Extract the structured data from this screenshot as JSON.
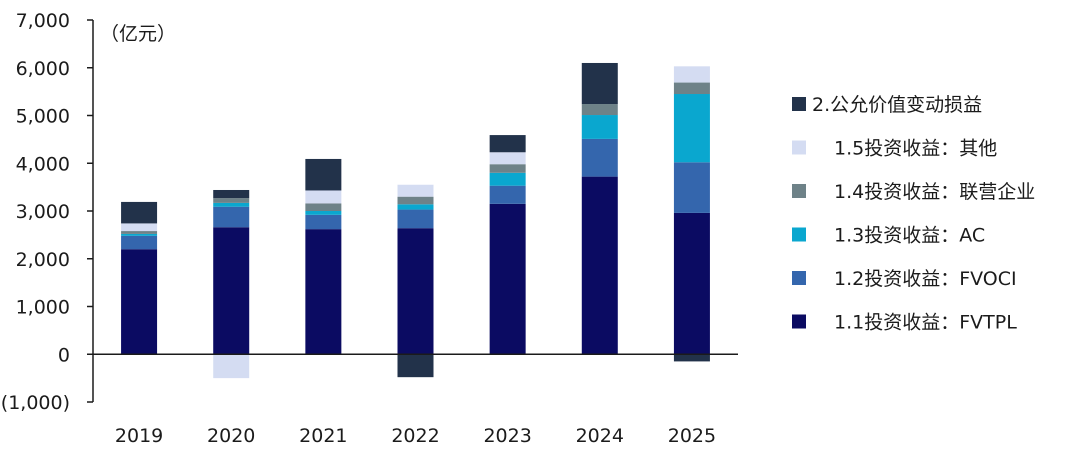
{
  "chart_data": {
    "type": "bar",
    "stacked": true,
    "unit_label": "（亿元）",
    "categories": [
      "2019",
      "2020",
      "2021",
      "2022",
      "2023",
      "2024",
      "2025"
    ],
    "ylim": [
      -1000,
      7000
    ],
    "yticks": [
      "(1,000)",
      "0",
      "1,000",
      "2,000",
      "3,000",
      "4,000",
      "5,000",
      "6,000",
      "7,000"
    ],
    "ytick_values": [
      -1000,
      0,
      1000,
      2000,
      3000,
      4000,
      5000,
      6000,
      7000
    ],
    "grid": false,
    "legend_position": "right",
    "series": [
      {
        "name": "1.1投资收益：FVTPL",
        "color": "#0b0b62",
        "values": [
          2200,
          2660,
          2620,
          2640,
          3150,
          3720,
          2960
        ]
      },
      {
        "name": "1.2投资收益：FVOCI",
        "color": "#3466ad",
        "values": [
          280,
          430,
          300,
          390,
          380,
          790,
          1060
        ]
      },
      {
        "name": "1.3投资收益：AC",
        "color": "#0aa7cf",
        "values": [
          40,
          80,
          80,
          110,
          270,
          500,
          1430
        ]
      },
      {
        "name": "1.4投资收益：联营企业",
        "color": "#6e8288",
        "values": [
          60,
          100,
          160,
          160,
          180,
          230,
          240
        ]
      },
      {
        "name": "1.5投资收益：其他",
        "color": "#d4dcf2",
        "values": [
          160,
          -500,
          270,
          250,
          250,
          0,
          340
        ]
      },
      {
        "name": "2.公允价值变动损益",
        "color": "#22324a",
        "values": [
          450,
          170,
          660,
          -480,
          360,
          860,
          -150
        ]
      }
    ]
  }
}
